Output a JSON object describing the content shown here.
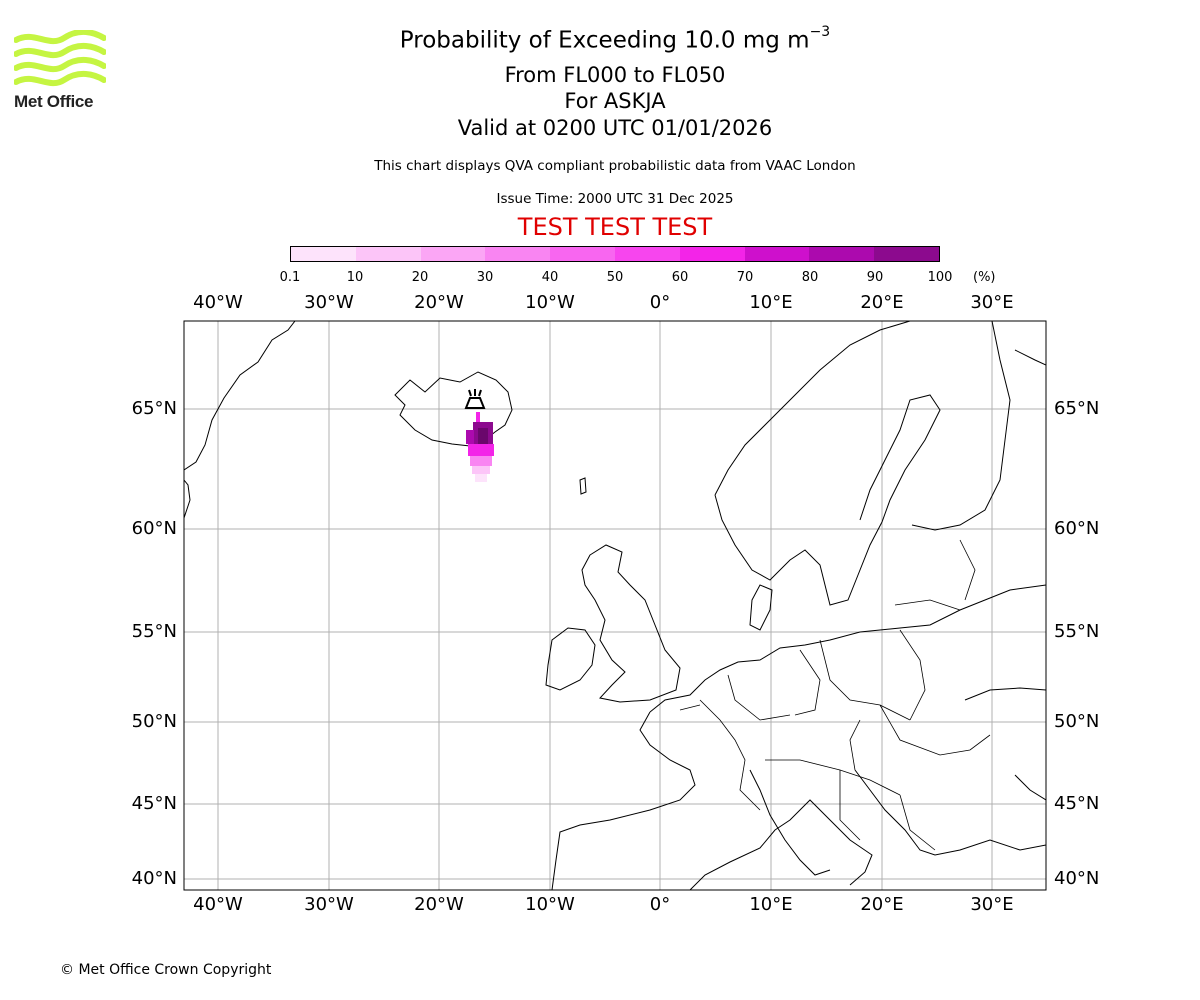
{
  "brand": {
    "name": "Met Office",
    "color": "#c5f542"
  },
  "header": {
    "title_main": "Probability of Exceeding 10.0 mg m",
    "title_sup": "−3",
    "levels": "From FL000 to FL050",
    "volcano": "For ASKJA",
    "valid": "Valid at 0200 UTC 01/01/2026",
    "note": "This chart displays QVA compliant probabilistic data from VAAC London",
    "issue": "Issue Time: 2000 UTC 31 Dec 2025",
    "test_banner": "TEST TEST TEST",
    "test_color": "#e00000"
  },
  "colorbar": {
    "ticks": [
      "0.1",
      "10",
      "20",
      "30",
      "40",
      "50",
      "60",
      "70",
      "80",
      "90",
      "100"
    ],
    "unit": "(%)",
    "colors": [
      "#fde3fb",
      "#fcc5f8",
      "#fba6f5",
      "#f985f2",
      "#f866f0",
      "#f745ee",
      "#f324e8",
      "#ce10cc",
      "#ac0aae",
      "#8c0a8e",
      "#6a076c"
    ]
  },
  "map": {
    "lon_labels": [
      "40°W",
      "30°W",
      "20°W",
      "10°W",
      "0°",
      "10°E",
      "20°E",
      "30°E"
    ],
    "lat_labels": [
      "65°N",
      "60°N",
      "55°N",
      "50°N",
      "45°N",
      "40°N"
    ],
    "volcano_marker": "Askja"
  },
  "footer": {
    "copyright": "© Met Office Crown Copyright"
  }
}
